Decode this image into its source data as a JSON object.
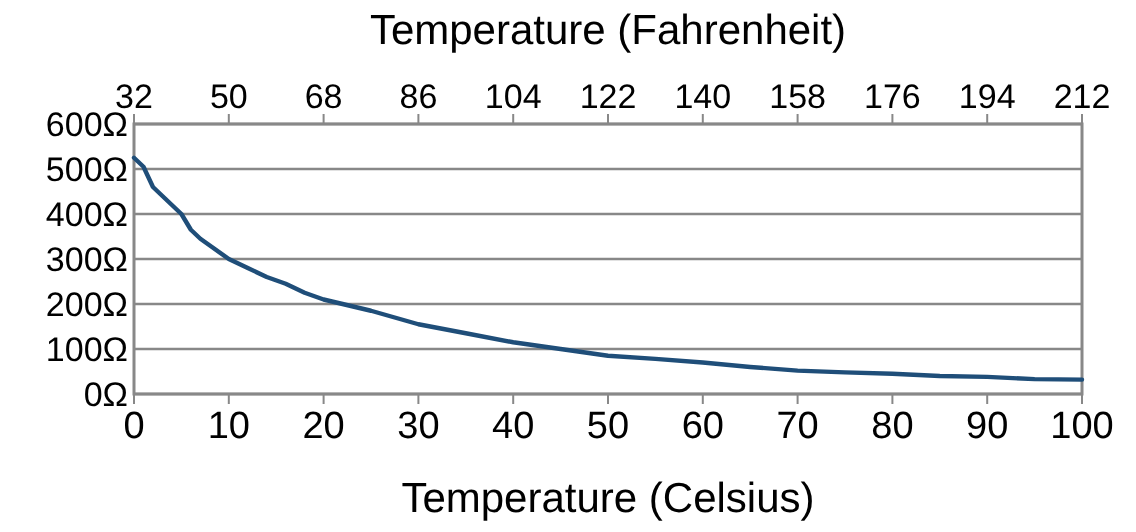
{
  "chart_data": {
    "type": "line",
    "xlabel": "Temperature (Celsius)",
    "x2label": "Temperature (Fahrenheit)",
    "x": [
      0,
      1,
      2,
      3,
      4,
      5,
      6,
      7,
      8,
      10,
      12,
      14,
      16,
      18,
      20,
      25,
      30,
      35,
      40,
      45,
      50,
      55,
      60,
      65,
      70,
      75,
      80,
      85,
      90,
      95,
      100
    ],
    "series": [
      {
        "color": "#1f4e79",
        "values": [
          525,
          505,
          460,
          440,
          420,
          400,
          365,
          345,
          330,
          300,
          280,
          260,
          245,
          225,
          210,
          185,
          155,
          135,
          115,
          100,
          85,
          78,
          70,
          60,
          52,
          48,
          45,
          40,
          38,
          33,
          32
        ]
      }
    ],
    "xlim": [
      0,
      100
    ],
    "xticks": [
      0,
      10,
      20,
      30,
      40,
      50,
      60,
      70,
      80,
      90,
      100
    ],
    "x2lim": [
      32,
      212
    ],
    "x2ticks": [
      32,
      50,
      68,
      86,
      104,
      122,
      140,
      158,
      176,
      194,
      212
    ],
    "ylim": [
      0,
      600
    ],
    "yticks": [
      {
        "value": 0,
        "label": "0Ω"
      },
      {
        "value": 100,
        "label": "100Ω"
      },
      {
        "value": 200,
        "label": "200Ω"
      },
      {
        "value": 300,
        "label": "300Ω"
      },
      {
        "value": 400,
        "label": "400Ω"
      },
      {
        "value": 500,
        "label": "500Ω"
      },
      {
        "value": 600,
        "label": "600Ω"
      }
    ],
    "grid": "y",
    "marker": "none",
    "line_style": "solid"
  }
}
